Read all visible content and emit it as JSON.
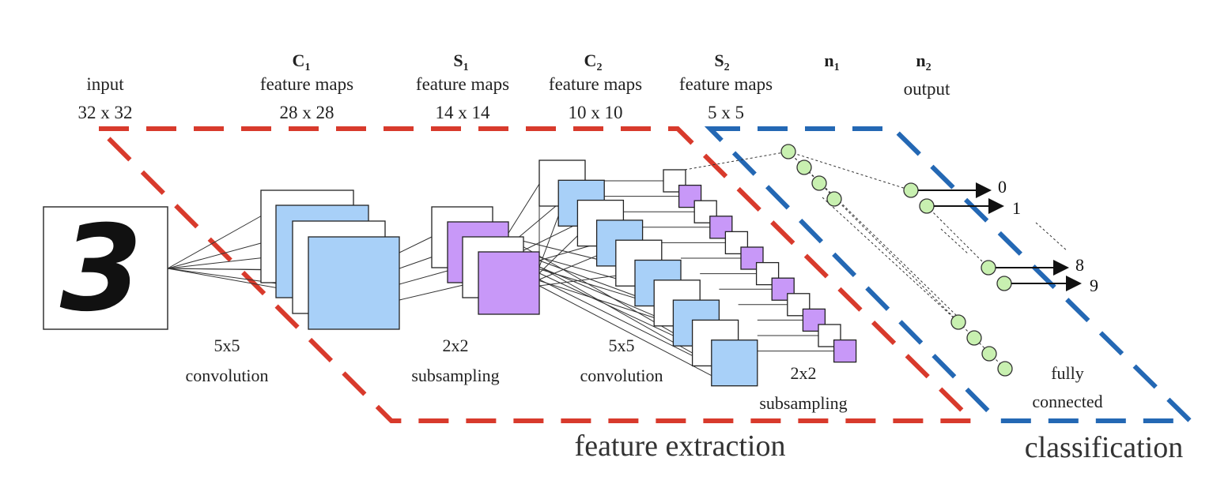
{
  "layers": {
    "input": {
      "name": "input",
      "size": "32 x 32"
    },
    "c1": {
      "letter": "C",
      "index": "1",
      "name": "feature maps",
      "size": "28 x 28"
    },
    "s1": {
      "letter": "S",
      "index": "1",
      "name": "feature maps",
      "size": "14 x 14"
    },
    "c2": {
      "letter": "C",
      "index": "2",
      "name": "feature maps",
      "size": "10 x 10"
    },
    "s2": {
      "letter": "S",
      "index": "2",
      "name": "feature maps",
      "size": "5 x 5"
    },
    "n1": {
      "letter": "n",
      "index": "1"
    },
    "n2": {
      "letter": "n",
      "index": "2",
      "name": "output"
    }
  },
  "operations": {
    "conv1": {
      "kernel": "5x5",
      "name": "convolution"
    },
    "sub1": {
      "kernel": "2x2",
      "name": "subsampling"
    },
    "conv2": {
      "kernel": "5x5",
      "name": "convolution"
    },
    "sub2": {
      "kernel": "2x2",
      "name": "subsampling"
    },
    "fc": {
      "line1": "fully",
      "line2": "connected"
    }
  },
  "input_digit": "3",
  "output_labels": [
    "0",
    "1",
    "8",
    "9"
  ],
  "stages": {
    "feature_extraction": "feature extraction",
    "classification": "classification"
  },
  "colors": {
    "feature_extraction_border": "#d83a2c",
    "classification_border": "#2468b4",
    "conv_map": "#a8d0f8",
    "subsample_map": "#c898f8",
    "neuron": "#c8f0b0"
  }
}
